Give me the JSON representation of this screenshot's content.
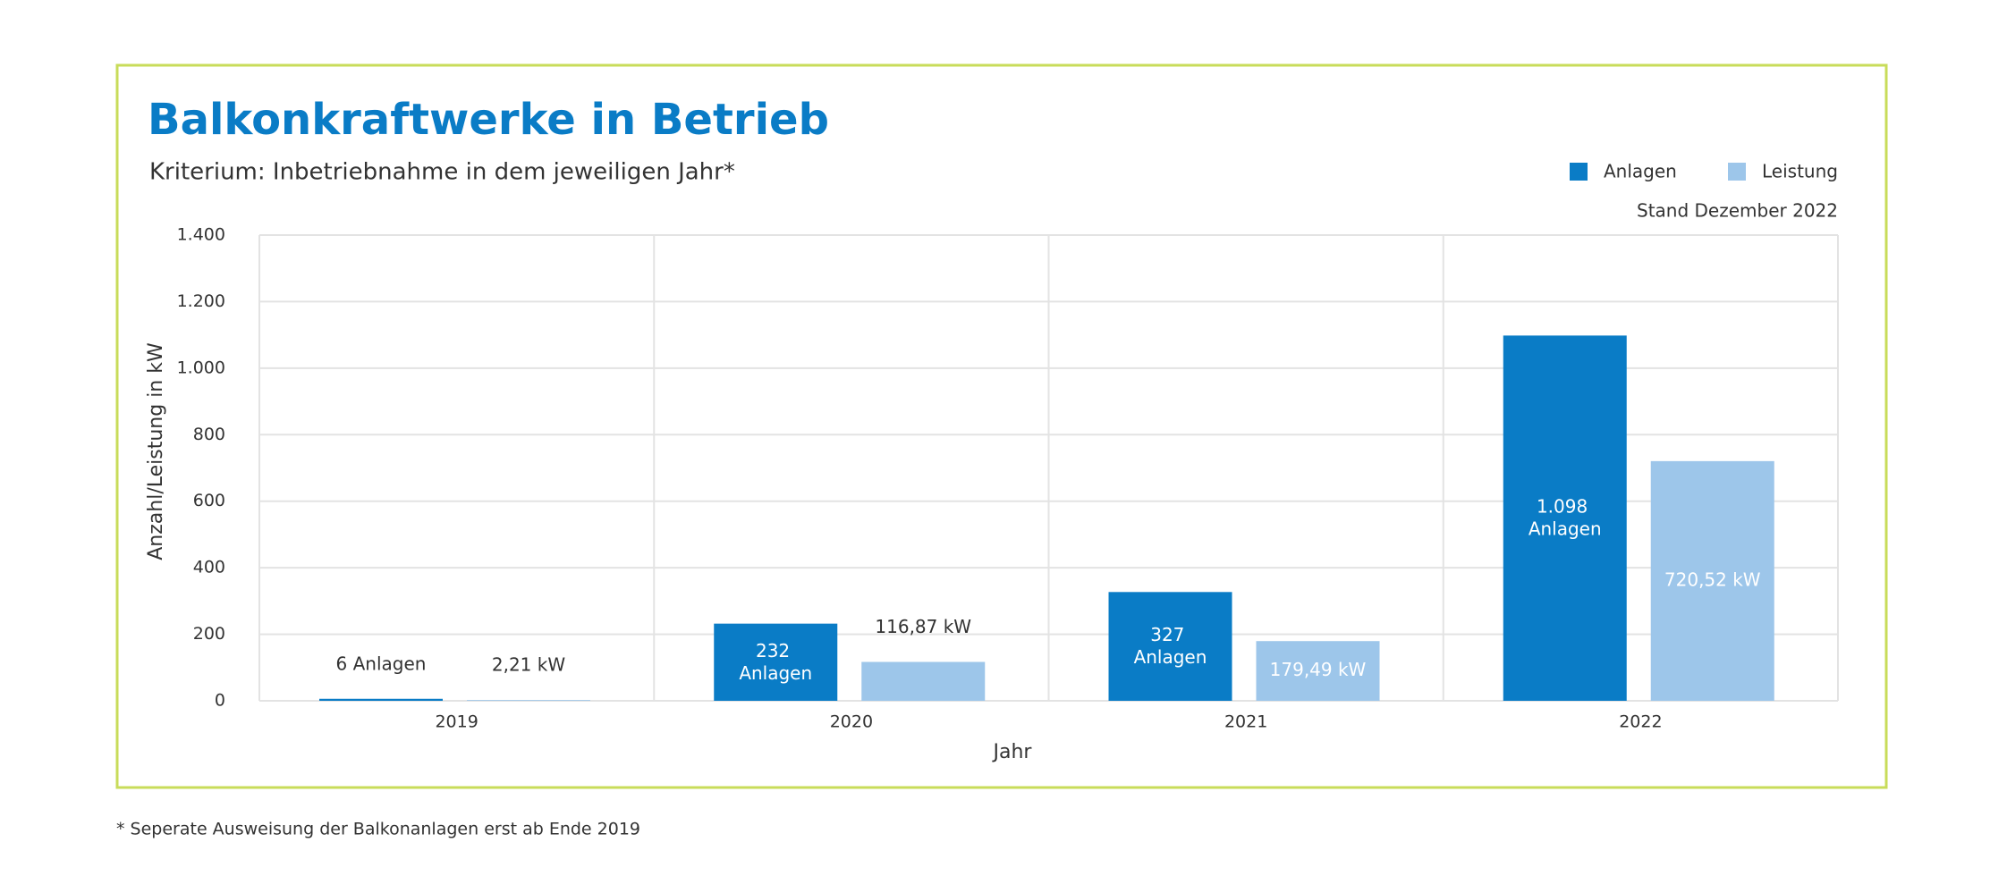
{
  "chart_data": {
    "type": "bar",
    "title": "Balkonkraftwerke in Betrieb",
    "subtitle": "Kriterium: Inbetriebnahme in dem jeweiligen Jahr*",
    "note": "Stand Dezember 2022",
    "footnote": "* Seperate Ausweisung der Balkonanlagen erst ab Ende 2019",
    "x_label": "Jahr",
    "y_label": "Anzahl/Leistung in kW",
    "categories": [
      "2019",
      "2020",
      "2021",
      "2022"
    ],
    "series": [
      {
        "name": "Anlagen",
        "color": "#0a7cc6",
        "values": [
          6,
          232,
          327,
          1098
        ],
        "value_labels": [
          "6 Anlagen",
          "232 Anlagen",
          "327 Anlagen",
          "1.098 Anlagen"
        ]
      },
      {
        "name": "Leistung",
        "color": "#9dc6ea",
        "values": [
          2.21,
          116.87,
          179.49,
          720.52
        ],
        "value_labels": [
          "2,21 kW",
          "116,87 kW",
          "179,49 kW",
          "720,52 kW"
        ]
      }
    ],
    "ylim": [
      0,
      1400
    ],
    "yticks": [
      0,
      200,
      400,
      600,
      800,
      {
        "value": 1000,
        "label": "1.000"
      },
      {
        "value": 1200,
        "label": "1.200"
      },
      {
        "value": 1400,
        "label": "1.400"
      }
    ],
    "grid": true,
    "legend": "top-right"
  }
}
